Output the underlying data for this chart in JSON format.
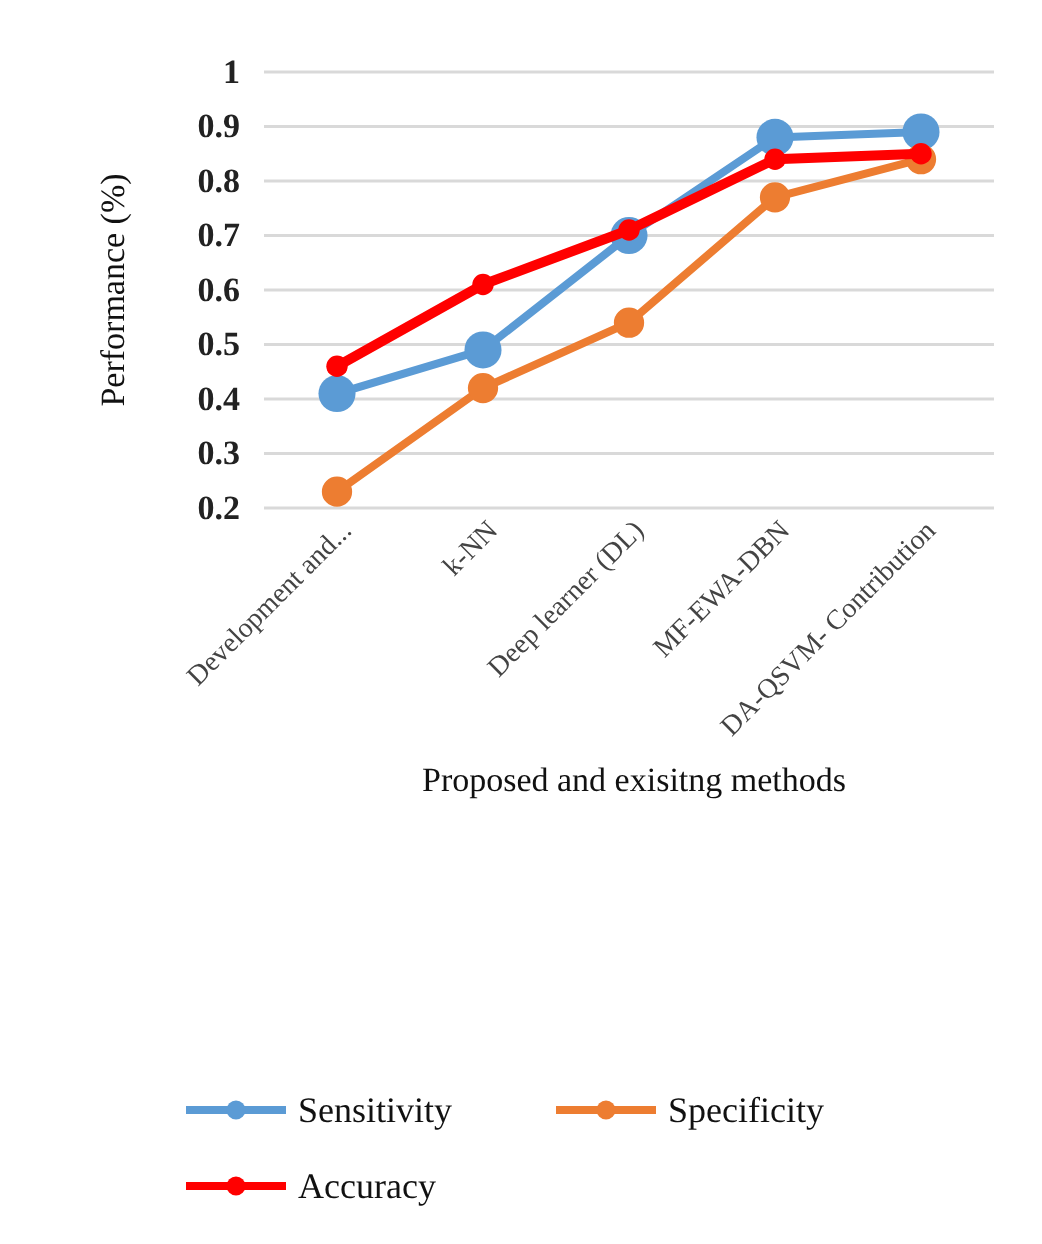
{
  "chart_data": {
    "type": "line",
    "categories": [
      "Development and...",
      "k-NN",
      "Deep learner (DL)",
      "MF-EWA-DBN",
      "DA-QSVM- Contribution"
    ],
    "series": [
      {
        "name": "Sensitivity",
        "color": "#5b9bd5",
        "values": [
          0.41,
          0.49,
          0.7,
          0.88,
          0.89
        ]
      },
      {
        "name": "Specificity",
        "color": "#ed7d31",
        "values": [
          0.23,
          0.42,
          0.54,
          0.77,
          0.84
        ]
      },
      {
        "name": "Accuracy",
        "color": "#ff0000",
        "values": [
          0.46,
          0.61,
          0.71,
          0.84,
          0.85
        ]
      }
    ],
    "xlabel": "Proposed and exisitng methods",
    "ylabel": "Performance (%)",
    "ylim": [
      0.2,
      1
    ],
    "yticks": [
      {
        "value": 0.2,
        "label": "0.2"
      },
      {
        "value": 0.3,
        "label": "0.3"
      },
      {
        "value": 0.4,
        "label": "0.4"
      },
      {
        "value": 0.5,
        "label": "0.5"
      },
      {
        "value": 0.6,
        "label": "0.6"
      },
      {
        "value": 0.7,
        "label": "0.7"
      },
      {
        "value": 0.8,
        "label": "0.8"
      },
      {
        "value": 0.9,
        "label": "0.9"
      },
      {
        "value": 1,
        "label": "1"
      }
    ],
    "grid": "y",
    "legend": "bottom",
    "marker": "circle",
    "line_style": "solid"
  }
}
